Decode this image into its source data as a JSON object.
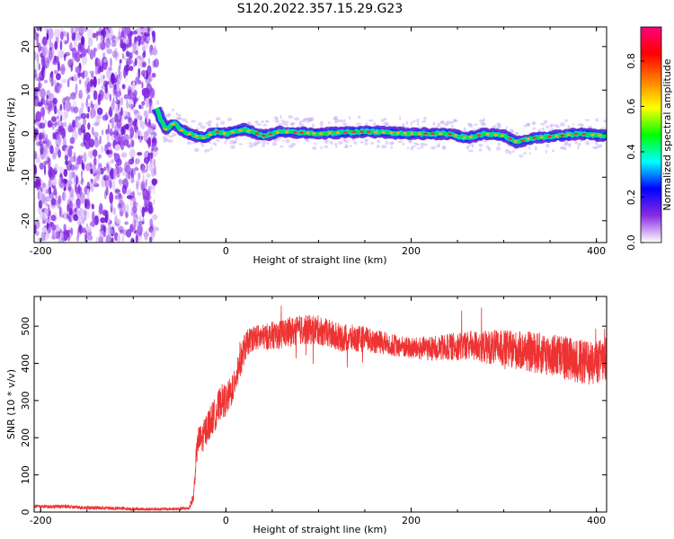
{
  "title": "S120.2022.357.15.29.G23",
  "chart_data": [
    {
      "type": "heatmap",
      "xlabel": "Height of straight line (km)",
      "ylabel": "Frequency (Hz)",
      "xlim": [
        -207,
        411
      ],
      "ylim": [
        -25,
        24.5
      ],
      "x_ticks": [
        -200,
        0,
        200,
        400
      ],
      "y_ticks": [
        -20,
        -10,
        0,
        10,
        20
      ],
      "noise_region_x": [
        -207,
        -75
      ],
      "signal_start_x": -75,
      "signal_track": [
        {
          "x": -75,
          "y": 6
        },
        {
          "x": -70,
          "y": 3
        },
        {
          "x": -65,
          "y": 1
        },
        {
          "x": -55,
          "y": 2.5
        },
        {
          "x": -50,
          "y": 1
        },
        {
          "x": -40,
          "y": 0
        },
        {
          "x": -25,
          "y": -1
        },
        {
          "x": -10,
          "y": 0.5
        },
        {
          "x": 0,
          "y": 0
        },
        {
          "x": 20,
          "y": 1
        },
        {
          "x": 40,
          "y": -0.5
        },
        {
          "x": 60,
          "y": 0.5
        },
        {
          "x": 100,
          "y": 0
        },
        {
          "x": 150,
          "y": 0.5
        },
        {
          "x": 200,
          "y": 0
        },
        {
          "x": 240,
          "y": 0
        },
        {
          "x": 260,
          "y": -1
        },
        {
          "x": 280,
          "y": 0
        },
        {
          "x": 300,
          "y": -0.5
        },
        {
          "x": 315,
          "y": -2
        },
        {
          "x": 330,
          "y": -1
        },
        {
          "x": 360,
          "y": -0.5
        },
        {
          "x": 380,
          "y": 0
        },
        {
          "x": 411,
          "y": -0.5
        }
      ],
      "colorbar": {
        "label": "Normalized spectral amplitude",
        "ticks": [
          0.0,
          0.2,
          0.4,
          0.6,
          0.8
        ],
        "range": [
          0,
          0.95
        ],
        "colors": [
          "#ffffff",
          "#8a2be2",
          "#0000ff",
          "#00ffff",
          "#00ff00",
          "#ffff00",
          "#ff8000",
          "#ff0000",
          "#ff0080"
        ]
      },
      "colors": {
        "noise": "#8a2be2",
        "track_edge": "#5b1fd1",
        "track_mid": "#00e060",
        "track_core": "#ff3030"
      }
    },
    {
      "type": "line",
      "xlabel": "Height of straight line (km)",
      "ylabel": "SNR (10 * v/v)",
      "xlim": [
        -207,
        411
      ],
      "ylim": [
        0,
        580
      ],
      "x_ticks": [
        -200,
        0,
        200,
        400
      ],
      "y_ticks": [
        0,
        100,
        200,
        300,
        400,
        500
      ],
      "line_color": "#ee3333",
      "series": [
        {
          "x": [
            -207,
            -180,
            -150,
            -120,
            -90,
            -60,
            -40,
            -35,
            -32,
            -30,
            -25,
            -20,
            -15,
            -10,
            -5,
            0,
            5,
            10,
            15,
            20,
            25,
            30,
            40,
            60,
            80,
            100,
            120,
            150,
            180,
            200,
            230,
            260,
            300,
            330,
            360,
            390,
            411
          ],
          "values": [
            15,
            15,
            12,
            10,
            8,
            8,
            10,
            40,
            150,
            190,
            200,
            230,
            250,
            270,
            300,
            300,
            320,
            360,
            400,
            440,
            460,
            470,
            470,
            480,
            490,
            490,
            470,
            465,
            450,
            440,
            440,
            450,
            440,
            430,
            420,
            400,
            410
          ],
          "noise_amplitude": [
            5,
            5,
            5,
            5,
            4,
            4,
            5,
            15,
            30,
            40,
            40,
            45,
            45,
            45,
            45,
            45,
            45,
            45,
            45,
            40,
            35,
            35,
            35,
            40,
            40,
            40,
            40,
            35,
            30,
            30,
            35,
            40,
            50,
            55,
            60,
            60,
            60
          ]
        }
      ]
    }
  ]
}
